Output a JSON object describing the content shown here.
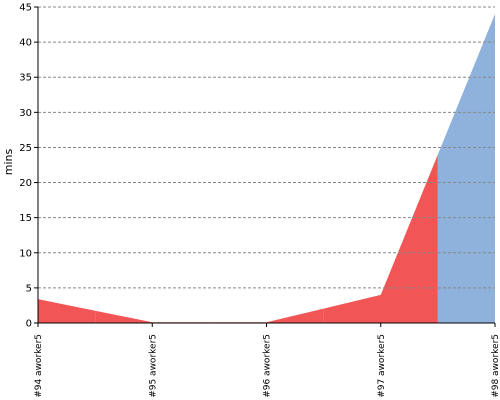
{
  "chart_data": {
    "type": "area",
    "y_label": "mins",
    "categories": [
      "#94 aworker5",
      "#95 aworker5",
      "#96 aworker5",
      "#97 aworker5",
      "#98 aworker5"
    ],
    "values": [
      3.4,
      0.1,
      0.1,
      4,
      44
    ],
    "colors": [
      "#f25555",
      "#f25555",
      "#f25555",
      "#f25555",
      "#8eb2db"
    ],
    "ylim": [
      0,
      45
    ],
    "yticks": [
      0,
      5,
      10,
      15,
      20,
      25,
      30,
      35,
      40,
      45
    ],
    "grid": true
  }
}
